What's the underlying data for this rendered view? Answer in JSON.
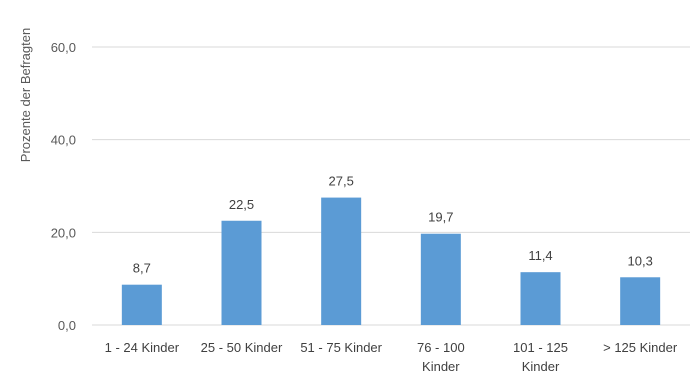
{
  "chart_data": {
    "type": "bar",
    "title": "",
    "xlabel": "",
    "ylabel": "Prozente der Befragten",
    "categories": [
      [
        "1 - 24 Kinder"
      ],
      [
        "25 - 50 Kinder"
      ],
      [
        "51 - 75 Kinder"
      ],
      [
        "76 - 100",
        "Kinder"
      ],
      [
        "101 - 125",
        "Kinder"
      ],
      [
        "> 125 Kinder"
      ]
    ],
    "values": [
      8.7,
      22.5,
      27.5,
      19.7,
      11.4,
      10.3
    ],
    "value_labels": [
      "8,7",
      "22,5",
      "27,5",
      "19,7",
      "11,4",
      "10,3"
    ],
    "yticks": [
      0,
      20,
      40,
      60
    ],
    "ytick_labels": [
      "0,0",
      "20,0",
      "40,0",
      "60,0"
    ],
    "ylim": [
      0,
      60
    ],
    "grid": true,
    "legend": "none",
    "colors": {
      "bar": "#5b9bd5",
      "grid": "#d9d9d9",
      "text": "#404040"
    }
  }
}
